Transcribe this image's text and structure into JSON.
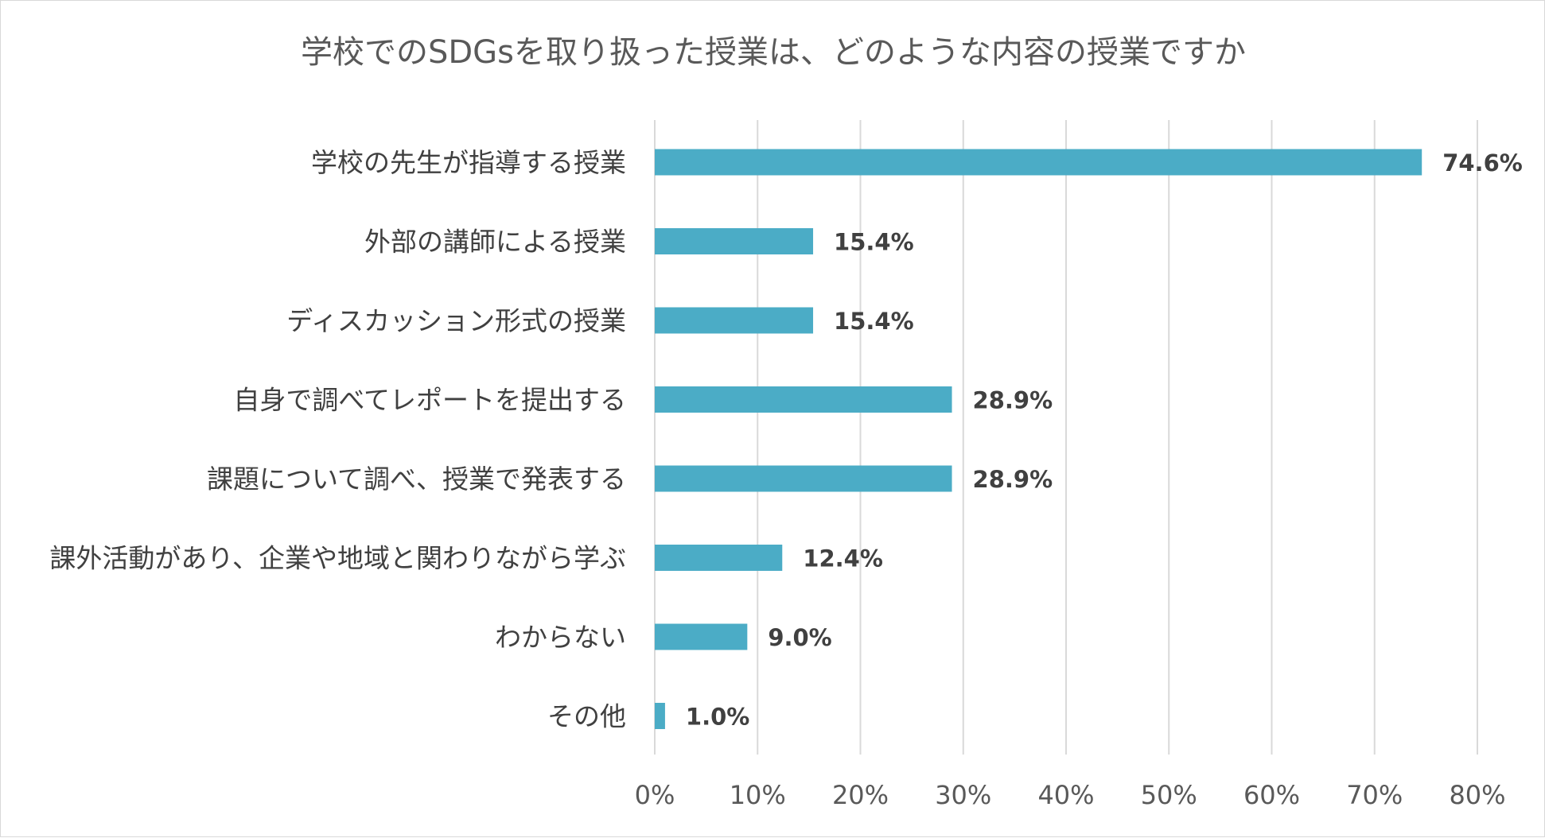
{
  "chart_data": {
    "type": "bar",
    "orientation": "horizontal",
    "title": "学校でのSDGsを取り扱った授業は、どのような内容の授業ですか",
    "categories": [
      "学校の先生が指導する授業",
      "外部の講師による授業",
      "ディスカッション形式の授業",
      "自身で調べてレポートを提出する",
      "課題について調べ、授業で発表する",
      "課外活動があり、企業や地域と関わりながら学ぶ",
      "わからない",
      "その他"
    ],
    "values": [
      74.6,
      15.4,
      15.4,
      28.9,
      28.9,
      12.4,
      9.0,
      1.0
    ],
    "data_labels": [
      "74.6%",
      "15.4%",
      "15.4%",
      "28.9%",
      "28.9%",
      "12.4%",
      "9.0%",
      "1.0%"
    ],
    "xlim": [
      0,
      80
    ],
    "x_ticks": [
      0,
      10,
      20,
      30,
      40,
      50,
      60,
      70,
      80
    ],
    "x_tick_labels": [
      "0%",
      "10%",
      "20%",
      "30%",
      "40%",
      "50%",
      "60%",
      "70%",
      "80%"
    ],
    "xlabel": "",
    "ylabel": "",
    "grid": true,
    "legend": "none",
    "bar_color": "#4bacc6",
    "grid_color": "#d9d9d9"
  }
}
